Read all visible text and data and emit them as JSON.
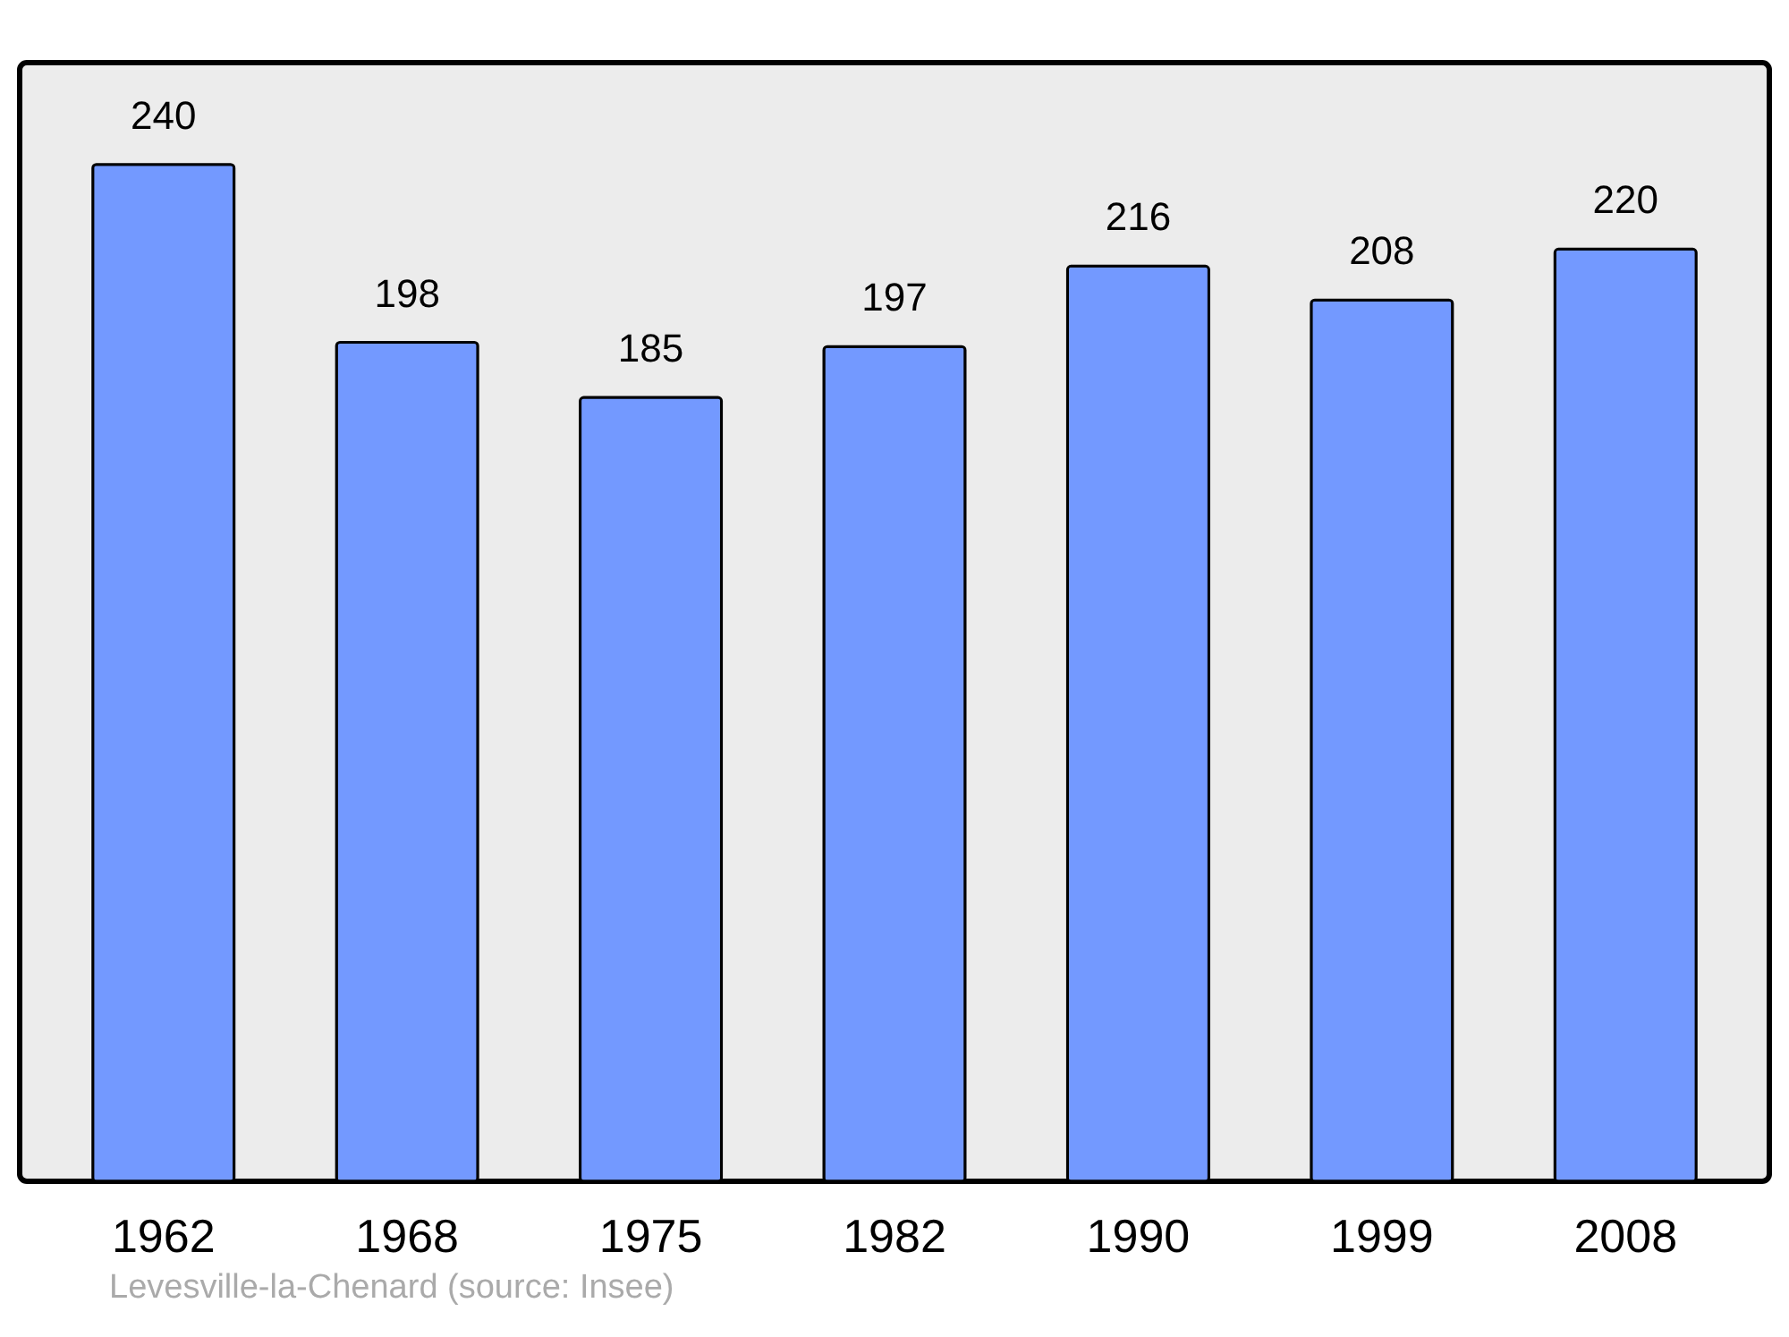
{
  "chart_data": {
    "type": "bar",
    "categories": [
      "1962",
      "1968",
      "1975",
      "1982",
      "1990",
      "1999",
      "2008"
    ],
    "values": [
      240,
      198,
      185,
      197,
      216,
      208,
      220
    ],
    "color": "#7399ff",
    "data_labels": true,
    "grid": false,
    "tick_labels": "x",
    "annotations": [
      "Levesville-la-Chenard    (source: Insee)"
    ]
  }
}
